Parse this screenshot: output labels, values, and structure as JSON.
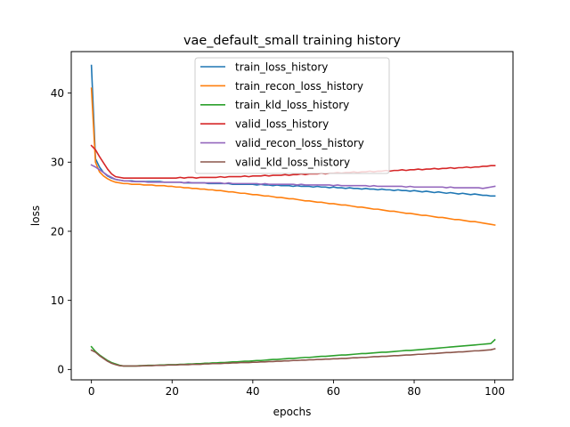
{
  "chart_data": {
    "type": "line",
    "title": "vae_default_small training history",
    "xlabel": "epochs",
    "ylabel": "loss",
    "xlim": [
      -5,
      104.5
    ],
    "ylim": [
      -1.5,
      46
    ],
    "xticks": [
      0,
      20,
      40,
      60,
      80,
      100
    ],
    "yticks": [
      0,
      10,
      20,
      30,
      40
    ],
    "grid": false,
    "legend_position": "top-center",
    "x_start": 0,
    "x_step": 1,
    "series": [
      {
        "name": "train_loss_history",
        "color": "#1f77b4",
        "values": [
          44.0,
          30.5,
          29.3,
          28.5,
          28.0,
          27.7,
          27.5,
          27.4,
          27.3,
          27.3,
          27.3,
          27.2,
          27.2,
          27.2,
          27.2,
          27.2,
          27.2,
          27.2,
          27.1,
          27.1,
          27.1,
          27.1,
          27.1,
          27.0,
          27.0,
          27.0,
          27.0,
          27.0,
          27.0,
          26.9,
          26.9,
          26.9,
          26.9,
          26.9,
          26.9,
          26.8,
          26.8,
          26.8,
          26.8,
          26.8,
          26.8,
          26.7,
          26.8,
          26.7,
          26.7,
          26.6,
          26.7,
          26.6,
          26.6,
          26.6,
          26.5,
          26.6,
          26.5,
          26.5,
          26.5,
          26.4,
          26.5,
          26.4,
          26.4,
          26.3,
          26.4,
          26.3,
          26.3,
          26.2,
          26.3,
          26.2,
          26.2,
          26.1,
          26.2,
          26.1,
          26.1,
          26.0,
          26.1,
          26.0,
          26.0,
          25.9,
          26.0,
          25.9,
          25.9,
          25.8,
          25.9,
          25.8,
          25.7,
          25.8,
          25.7,
          25.6,
          25.7,
          25.6,
          25.5,
          25.6,
          25.5,
          25.4,
          25.5,
          25.4,
          25.3,
          25.4,
          25.3,
          25.2,
          25.2,
          25.1,
          25.1
        ]
      },
      {
        "name": "train_recon_loss_history",
        "color": "#ff7f0e",
        "values": [
          40.7,
          30.0,
          28.6,
          28.0,
          27.6,
          27.3,
          27.1,
          27.0,
          26.9,
          26.9,
          26.8,
          26.8,
          26.8,
          26.7,
          26.7,
          26.7,
          26.6,
          26.6,
          26.6,
          26.5,
          26.5,
          26.4,
          26.4,
          26.3,
          26.3,
          26.2,
          26.2,
          26.1,
          26.1,
          26.0,
          26.0,
          25.9,
          25.9,
          25.8,
          25.7,
          25.7,
          25.6,
          25.5,
          25.5,
          25.4,
          25.3,
          25.3,
          25.2,
          25.1,
          25.1,
          25.0,
          24.9,
          24.9,
          24.8,
          24.7,
          24.7,
          24.6,
          24.5,
          24.4,
          24.4,
          24.3,
          24.2,
          24.2,
          24.1,
          24.0,
          24.0,
          23.9,
          23.8,
          23.8,
          23.7,
          23.6,
          23.5,
          23.5,
          23.4,
          23.3,
          23.2,
          23.2,
          23.1,
          23.0,
          22.9,
          22.9,
          22.8,
          22.7,
          22.6,
          22.6,
          22.5,
          22.4,
          22.3,
          22.3,
          22.2,
          22.1,
          22.0,
          22.0,
          21.9,
          21.8,
          21.7,
          21.7,
          21.6,
          21.5,
          21.4,
          21.4,
          21.3,
          21.2,
          21.1,
          21.0,
          20.9
        ]
      },
      {
        "name": "train_kld_loss_history",
        "color": "#2ca02c",
        "values": [
          3.3,
          2.6,
          2.1,
          1.7,
          1.3,
          1.0,
          0.8,
          0.6,
          0.5,
          0.5,
          0.5,
          0.5,
          0.55,
          0.55,
          0.6,
          0.6,
          0.6,
          0.65,
          0.65,
          0.7,
          0.7,
          0.7,
          0.75,
          0.75,
          0.8,
          0.8,
          0.85,
          0.85,
          0.9,
          0.9,
          0.95,
          0.95,
          1.0,
          1.0,
          1.05,
          1.1,
          1.1,
          1.15,
          1.2,
          1.2,
          1.25,
          1.3,
          1.3,
          1.35,
          1.4,
          1.45,
          1.45,
          1.5,
          1.55,
          1.6,
          1.6,
          1.65,
          1.7,
          1.75,
          1.75,
          1.8,
          1.85,
          1.9,
          1.9,
          1.95,
          2.0,
          2.05,
          2.1,
          2.1,
          2.15,
          2.2,
          2.25,
          2.3,
          2.3,
          2.35,
          2.4,
          2.45,
          2.5,
          2.5,
          2.55,
          2.6,
          2.65,
          2.7,
          2.75,
          2.75,
          2.8,
          2.85,
          2.9,
          2.95,
          3.0,
          3.05,
          3.1,
          3.15,
          3.2,
          3.25,
          3.3,
          3.35,
          3.4,
          3.45,
          3.5,
          3.55,
          3.6,
          3.65,
          3.7,
          3.75,
          4.3
        ]
      },
      {
        "name": "valid_loss_history",
        "color": "#d62728",
        "values": [
          32.4,
          31.8,
          30.8,
          29.9,
          29.0,
          28.3,
          27.9,
          27.8,
          27.7,
          27.7,
          27.7,
          27.7,
          27.7,
          27.7,
          27.7,
          27.7,
          27.7,
          27.7,
          27.7,
          27.7,
          27.7,
          27.7,
          27.8,
          27.7,
          27.8,
          27.8,
          27.7,
          27.8,
          27.8,
          27.8,
          27.8,
          27.8,
          27.9,
          27.8,
          27.9,
          27.9,
          27.9,
          27.9,
          28.0,
          27.9,
          28.0,
          28.0,
          28.0,
          28.1,
          28.0,
          28.1,
          28.1,
          28.1,
          28.2,
          28.1,
          28.2,
          28.2,
          28.3,
          28.2,
          28.3,
          28.3,
          28.3,
          28.4,
          28.3,
          28.4,
          28.4,
          28.5,
          28.4,
          28.5,
          28.5,
          28.6,
          28.5,
          28.6,
          28.6,
          28.7,
          28.6,
          28.7,
          28.7,
          28.8,
          28.7,
          28.8,
          28.8,
          28.9,
          28.8,
          28.9,
          28.9,
          29.0,
          28.9,
          29.0,
          29.0,
          29.1,
          29.0,
          29.1,
          29.1,
          29.2,
          29.1,
          29.2,
          29.2,
          29.3,
          29.2,
          29.3,
          29.3,
          29.4,
          29.4,
          29.5,
          29.5
        ]
      },
      {
        "name": "valid_recon_loss_history",
        "color": "#9467bd",
        "values": [
          29.6,
          29.3,
          28.9,
          28.5,
          28.1,
          27.8,
          27.5,
          27.4,
          27.3,
          27.3,
          27.2,
          27.2,
          27.2,
          27.2,
          27.1,
          27.1,
          27.1,
          27.1,
          27.1,
          27.1,
          27.1,
          27.1,
          27.1,
          27.0,
          27.1,
          27.0,
          27.0,
          27.0,
          27.0,
          27.0,
          27.0,
          27.0,
          27.0,
          26.9,
          27.0,
          26.9,
          26.9,
          26.9,
          26.9,
          26.9,
          26.9,
          26.9,
          26.8,
          26.9,
          26.8,
          26.8,
          26.8,
          26.8,
          26.8,
          26.8,
          26.8,
          26.7,
          26.8,
          26.7,
          26.7,
          26.7,
          26.7,
          26.7,
          26.7,
          26.7,
          26.6,
          26.7,
          26.6,
          26.6,
          26.6,
          26.6,
          26.6,
          26.6,
          26.6,
          26.5,
          26.6,
          26.5,
          26.5,
          26.5,
          26.5,
          26.5,
          26.5,
          26.5,
          26.4,
          26.5,
          26.4,
          26.4,
          26.4,
          26.4,
          26.4,
          26.4,
          26.4,
          26.4,
          26.3,
          26.4,
          26.3,
          26.3,
          26.3,
          26.3,
          26.3,
          26.3,
          26.3,
          26.2,
          26.3,
          26.4,
          26.5
        ]
      },
      {
        "name": "valid_kld_loss_history",
        "color": "#8c564b",
        "values": [
          2.8,
          2.5,
          2.0,
          1.6,
          1.2,
          0.9,
          0.7,
          0.55,
          0.5,
          0.5,
          0.5,
          0.5,
          0.5,
          0.55,
          0.55,
          0.55,
          0.6,
          0.6,
          0.6,
          0.65,
          0.65,
          0.65,
          0.7,
          0.7,
          0.7,
          0.75,
          0.75,
          0.75,
          0.8,
          0.8,
          0.85,
          0.85,
          0.85,
          0.9,
          0.9,
          0.95,
          0.95,
          1.0,
          1.0,
          1.0,
          1.05,
          1.05,
          1.1,
          1.1,
          1.15,
          1.15,
          1.2,
          1.2,
          1.25,
          1.25,
          1.3,
          1.3,
          1.35,
          1.35,
          1.4,
          1.4,
          1.45,
          1.45,
          1.5,
          1.5,
          1.55,
          1.55,
          1.6,
          1.6,
          1.65,
          1.7,
          1.7,
          1.75,
          1.75,
          1.8,
          1.85,
          1.85,
          1.9,
          1.9,
          1.95,
          2.0,
          2.0,
          2.05,
          2.1,
          2.1,
          2.15,
          2.2,
          2.2,
          2.25,
          2.3,
          2.3,
          2.35,
          2.4,
          2.45,
          2.45,
          2.5,
          2.55,
          2.55,
          2.6,
          2.65,
          2.7,
          2.7,
          2.75,
          2.8,
          2.85,
          3.0
        ]
      }
    ]
  }
}
